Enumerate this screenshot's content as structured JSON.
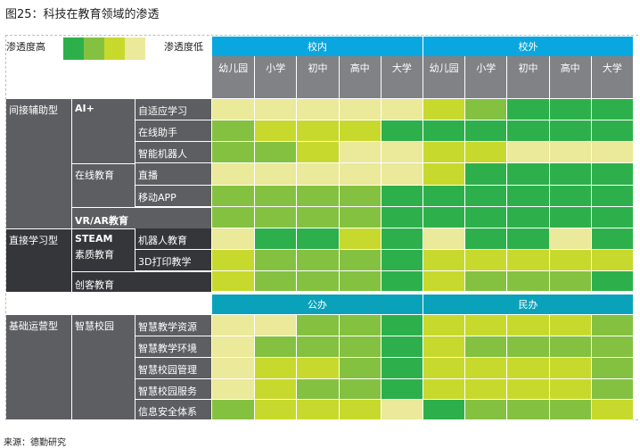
{
  "title": "图25：科技在教育领域的渗透",
  "source": "来源：德勤研究",
  "legend": {
    "high_label": "渗透度高",
    "low_label": "渗透度低",
    "levels": [
      {
        "level": 4,
        "color": "#2db04b"
      },
      {
        "level": 3,
        "color": "#84c141"
      },
      {
        "level": 2,
        "color": "#c8d92d"
      },
      {
        "level": 1,
        "color": "#ebe99a"
      }
    ]
  },
  "header": {
    "group_top": [
      "校内",
      "校外"
    ],
    "group_bottom": [
      "公办",
      "民办"
    ],
    "columns": [
      "幼儿园",
      "小学",
      "初中",
      "高中",
      "大学",
      "幼儿园",
      "小学",
      "初中",
      "高中",
      "大学"
    ]
  },
  "categories": {
    "indirect": "间接辅助型",
    "direct": "直接学习型",
    "basic": "基础运营型",
    "ai": "AI+",
    "online": "在线教育",
    "vrar": "VR/AR教育",
    "steam": "STEAM\n素质教育",
    "steam_a": "STEAM",
    "steam_b": "素质教育",
    "maker": "创客教育",
    "smart_campus": "智慧校园"
  },
  "chart_data": {
    "type": "heatmap",
    "title": "图25：科技在教育领域的渗透",
    "scale": {
      "min": 1,
      "max": 4,
      "low_label": "渗透度低",
      "high_label": "渗透度高"
    },
    "sections": [
      {
        "column_groups": [
          "校内",
          "校外"
        ],
        "columns": [
          "幼儿园",
          "小学",
          "初中",
          "高中",
          "大学",
          "幼儿园",
          "小学",
          "初中",
          "高中",
          "大学"
        ],
        "rows": [
          {
            "type": "间接辅助型",
            "group": "AI+",
            "name": "自适应学习",
            "values": [
              1,
              1,
              1,
              1,
              1,
              2,
              3,
              4,
              4,
              4
            ]
          },
          {
            "type": "间接辅助型",
            "group": "AI+",
            "name": "在线助手",
            "values": [
              3,
              2,
              2,
              2,
              4,
              4,
              4,
              4,
              4,
              4
            ]
          },
          {
            "type": "间接辅助型",
            "group": "AI+",
            "name": "智能机器人",
            "values": [
              3,
              3,
              2,
              1,
              1,
              2,
              2,
              1,
              1,
              1
            ]
          },
          {
            "type": "间接辅助型",
            "group": "在线教育",
            "name": "直播",
            "values": [
              1,
              1,
              1,
              1,
              1,
              2,
              4,
              4,
              4,
              4
            ]
          },
          {
            "type": "间接辅助型",
            "group": "在线教育",
            "name": "移动APP",
            "values": [
              3,
              3,
              3,
              3,
              4,
              4,
              4,
              4,
              4,
              4
            ]
          },
          {
            "type": "间接辅助型",
            "group": "VR/AR教育",
            "name": "",
            "values": [
              3,
              3,
              3,
              3,
              4,
              4,
              4,
              4,
              4,
              4
            ]
          },
          {
            "type": "直接学习型",
            "group": "STEAM素质教育",
            "name": "机器人教育",
            "values": [
              1,
              4,
              4,
              2,
              4,
              1,
              4,
              4,
              1,
              4
            ]
          },
          {
            "type": "直接学习型",
            "group": "STEAM素质教育",
            "name": "3D打印教学",
            "values": [
              2,
              3,
              3,
              3,
              4,
              2,
              2,
              2,
              2,
              2
            ]
          },
          {
            "type": "直接学习型",
            "group": "创客教育",
            "name": "",
            "values": [
              2,
              3,
              3,
              3,
              4,
              2,
              3,
              3,
              3,
              4
            ]
          }
        ]
      },
      {
        "column_groups": [
          "公办",
          "民办"
        ],
        "columns": [
          "幼儿园",
          "小学",
          "初中",
          "高中",
          "大学",
          "幼儿园",
          "小学",
          "初中",
          "高中",
          "大学"
        ],
        "rows": [
          {
            "type": "基础运营型",
            "group": "智慧校园",
            "name": "智慧教学资源",
            "values": [
              1,
              1,
              3,
              3,
              4,
              2,
              2,
              2,
              2,
              3
            ]
          },
          {
            "type": "基础运营型",
            "group": "智慧校园",
            "name": "智慧教学环境",
            "values": [
              1,
              3,
              3,
              3,
              4,
              2,
              3,
              3,
              3,
              3
            ]
          },
          {
            "type": "基础运营型",
            "group": "智慧校园",
            "name": "智慧校园管理",
            "values": [
              1,
              2,
              2,
              3,
              4,
              2,
              2,
              2,
              2,
              3
            ]
          },
          {
            "type": "基础运营型",
            "group": "智慧校园",
            "name": "智慧校园服务",
            "values": [
              1,
              2,
              3,
              3,
              4,
              2,
              2,
              2,
              2,
              3
            ]
          },
          {
            "type": "基础运营型",
            "group": "智慧校园",
            "name": "信息安全体系",
            "values": [
              3,
              2,
              2,
              2,
              1,
              4,
              3,
              3,
              3,
              2
            ]
          }
        ]
      }
    ]
  }
}
